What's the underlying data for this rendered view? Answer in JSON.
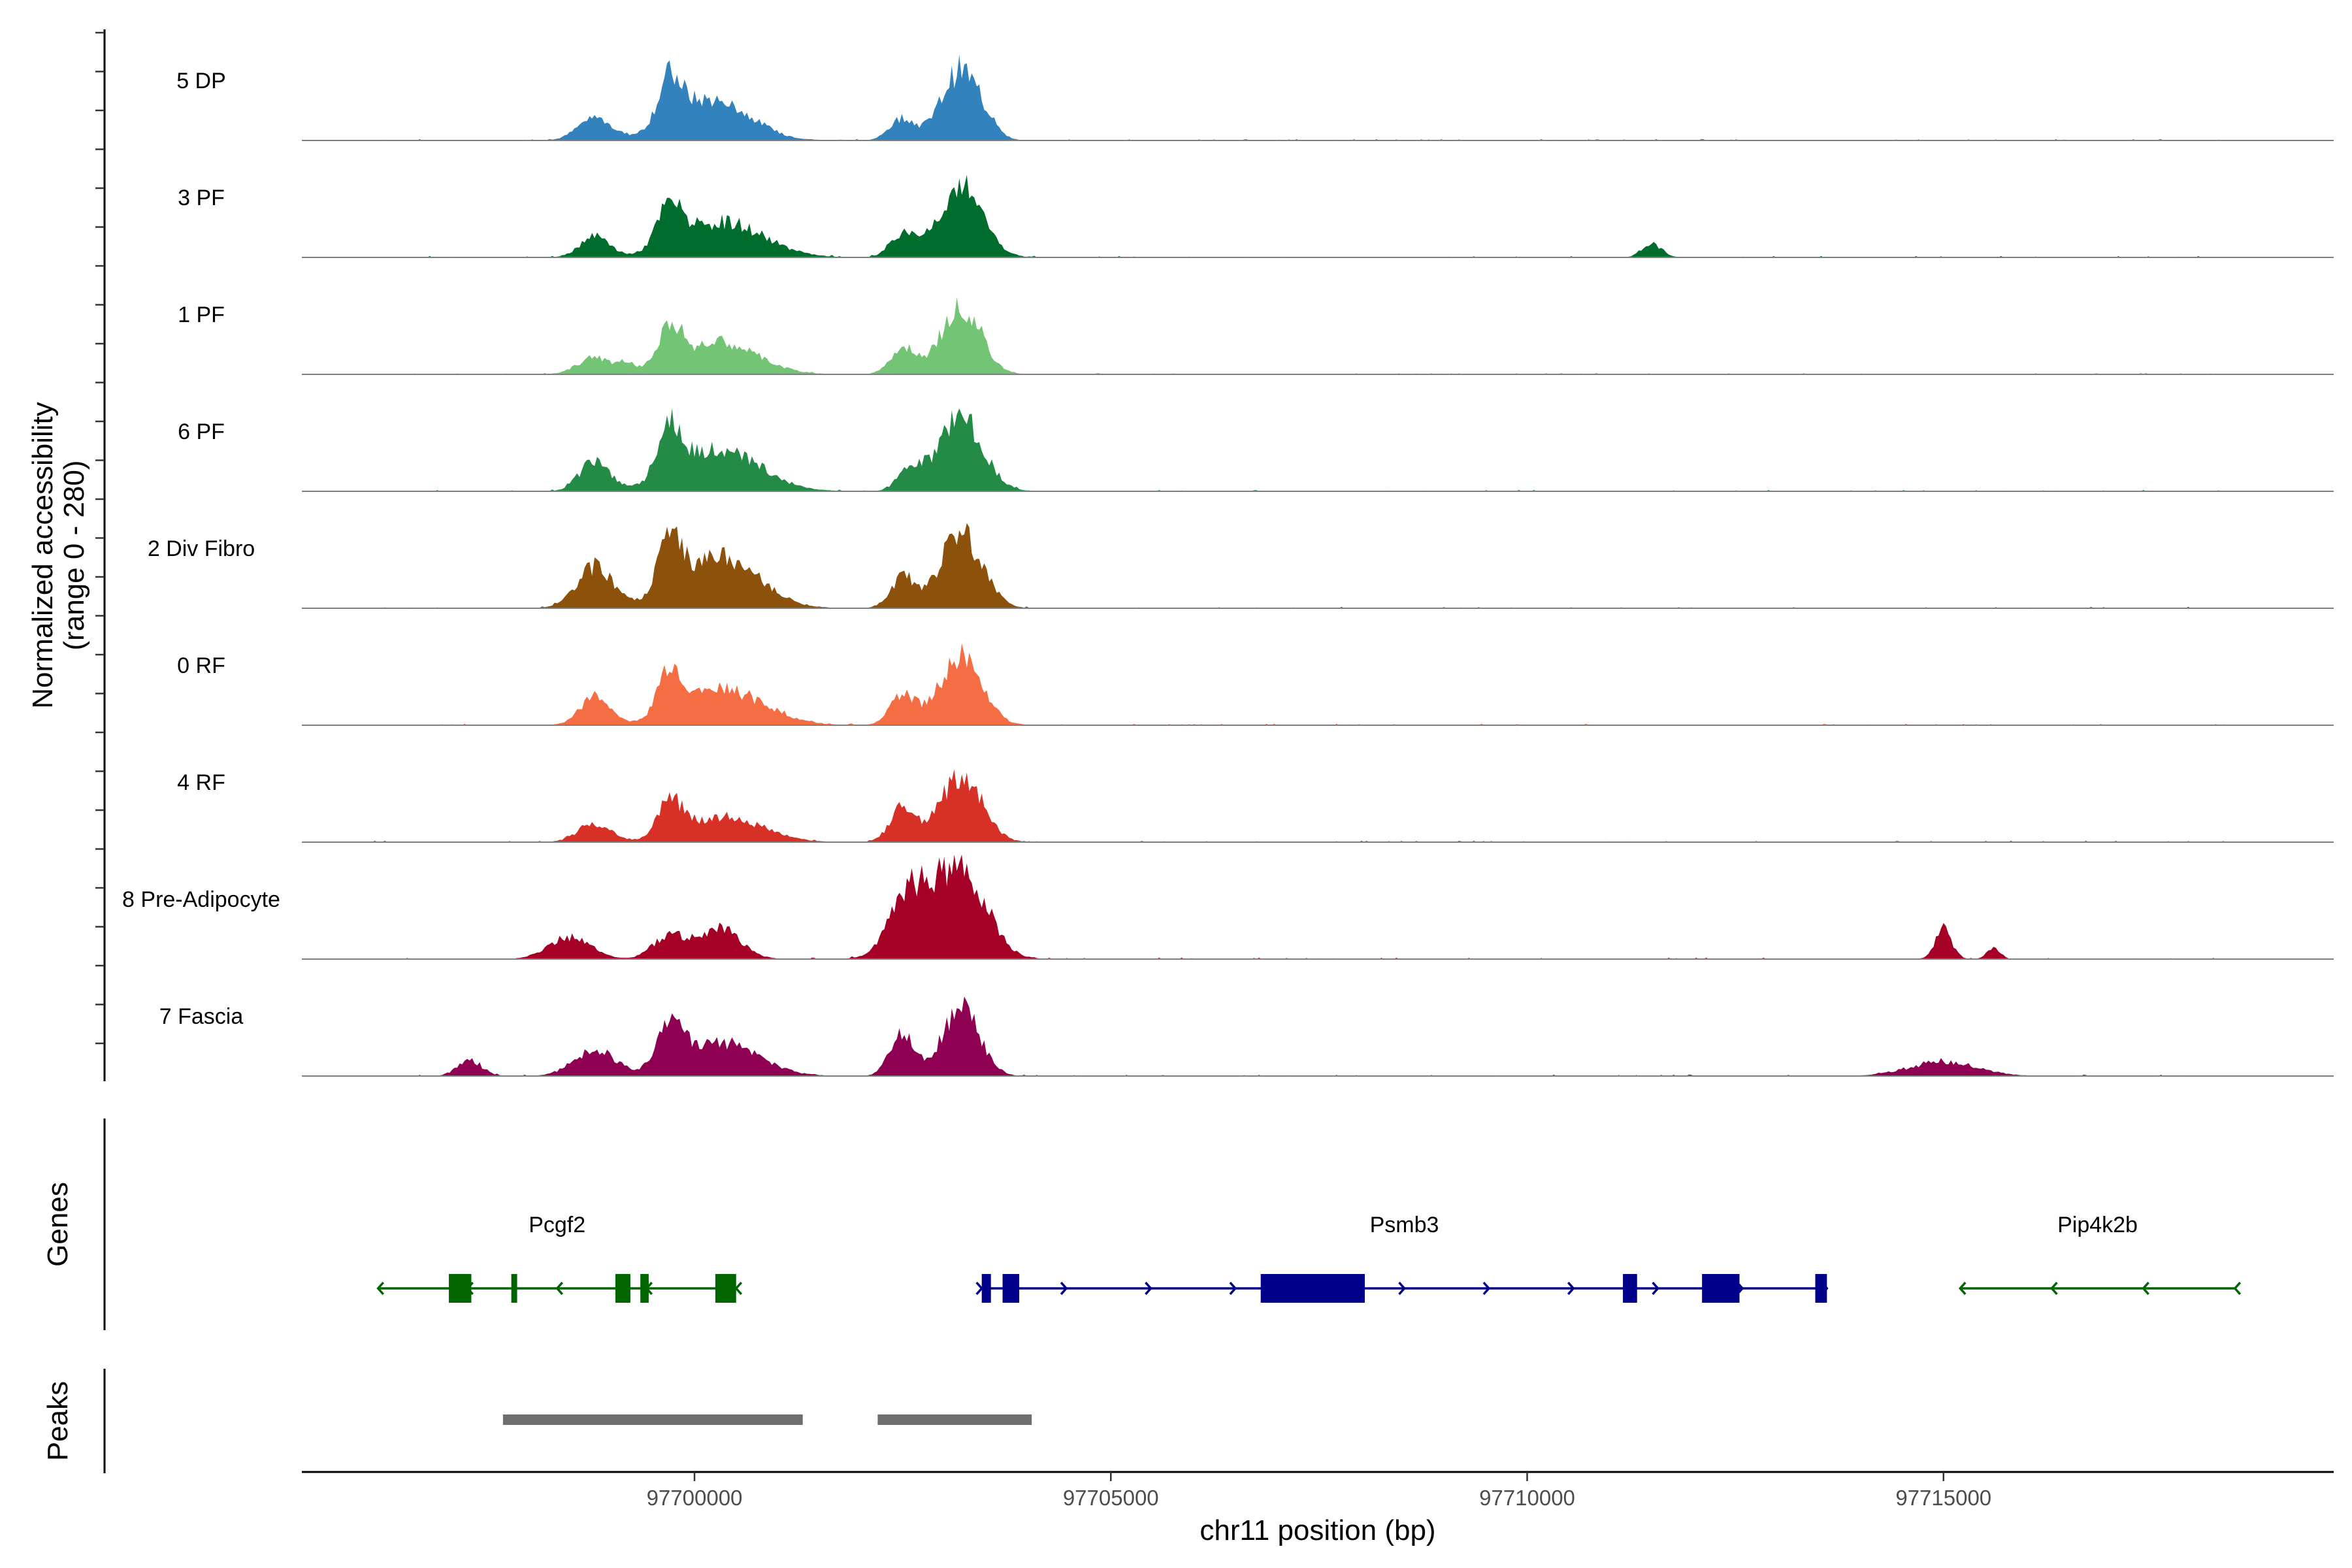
{
  "chart_data": {
    "type": "area",
    "chromosome": "chr11",
    "region": [
      97695000,
      97718500
    ],
    "y_axis_title": "Normalized accessibility",
    "y_axis_subtitle": "(range 0 - 280)",
    "y_range": [
      0,
      280
    ],
    "x_axis_title": "chr11 position (bp)",
    "x_ticks": [
      97700000,
      97705000,
      97710000,
      97715000
    ],
    "x_tick_labels": [
      "97700000",
      "97705000",
      "97710000",
      "97715000"
    ],
    "tracks": [
      {
        "name": "5 DP",
        "color": "#3182BD",
        "peaks": [
          [
            97698800,
            60,
            200
          ],
          [
            97699700,
            120,
            140
          ],
          [
            97700200,
            110,
            450
          ],
          [
            97702500,
            60,
            150
          ],
          [
            97703200,
            190,
            230
          ],
          [
            97703600,
            20,
            80
          ]
        ]
      },
      {
        "name": "3 PF",
        "color": "#006D2C",
        "peaks": [
          [
            97698800,
            55,
            180
          ],
          [
            97699700,
            110,
            150
          ],
          [
            97700350,
            95,
            480
          ],
          [
            97702500,
            60,
            150
          ],
          [
            97703200,
            190,
            260
          ],
          [
            97711500,
            35,
            120
          ]
        ]
      },
      {
        "name": "1 PF",
        "color": "#74C476",
        "peaks": [
          [
            97698800,
            45,
            200
          ],
          [
            97699200,
            25,
            100
          ],
          [
            97699700,
            110,
            140
          ],
          [
            97700300,
            85,
            450
          ],
          [
            97702500,
            70,
            150
          ],
          [
            97703200,
            185,
            240
          ]
        ]
      },
      {
        "name": "6 PF",
        "color": "#238B45",
        "peaks": [
          [
            97698800,
            80,
            180
          ],
          [
            97699700,
            140,
            140
          ],
          [
            97700300,
            115,
            480
          ],
          [
            97702600,
            60,
            150
          ],
          [
            97703200,
            200,
            260
          ]
        ]
      },
      {
        "name": "2 Div Fibro",
        "color": "#8C510A",
        "peaks": [
          [
            97698800,
            110,
            220
          ],
          [
            97699700,
            140,
            140
          ],
          [
            97700300,
            140,
            450
          ],
          [
            97702500,
            80,
            150
          ],
          [
            97703200,
            200,
            250
          ]
        ]
      },
      {
        "name": "0 RF",
        "color": "#F46D43",
        "peaks": [
          [
            97698800,
            75,
            180
          ],
          [
            97699700,
            115,
            140
          ],
          [
            97700350,
            95,
            480
          ],
          [
            97702500,
            80,
            150
          ],
          [
            97703200,
            190,
            250
          ]
        ]
      },
      {
        "name": "4 RF",
        "color": "#D73027",
        "peaks": [
          [
            97698800,
            50,
            200
          ],
          [
            97699700,
            100,
            140
          ],
          [
            97700350,
            70,
            450
          ],
          [
            97702500,
            90,
            150
          ],
          [
            97703200,
            180,
            250
          ]
        ]
      },
      {
        "name": "8 Pre-Adipocyte",
        "color": "#A50026",
        "peaks": [
          [
            97698500,
            60,
            250
          ],
          [
            97699700,
            60,
            200
          ],
          [
            97700300,
            80,
            250
          ],
          [
            97702600,
            170,
            250
          ],
          [
            97703200,
            240,
            300
          ],
          [
            97715000,
            80,
            100
          ],
          [
            97715600,
            30,
            80
          ]
        ]
      },
      {
        "name": "7 Fascia",
        "color": "#8E0152",
        "peaks": [
          [
            97697300,
            40,
            150
          ],
          [
            97698800,
            70,
            250
          ],
          [
            97699700,
            115,
            150
          ],
          [
            97700300,
            90,
            450
          ],
          [
            97702500,
            110,
            150
          ],
          [
            97703200,
            180,
            220
          ],
          [
            97715000,
            40,
            400
          ]
        ]
      }
    ],
    "genes": [
      {
        "name": "Pcgf2",
        "strand": "-",
        "start": 97696200,
        "end": 97700500,
        "color": "#006400",
        "exons": [
          [
            97697050,
            97697320
          ],
          [
            97697800,
            97697870
          ],
          [
            97699050,
            97699230
          ],
          [
            97699350,
            97699450
          ],
          [
            97700250,
            97700500
          ]
        ]
      },
      {
        "name": "Psmb3",
        "strand": "+",
        "start": 97703450,
        "end": 97713600,
        "color": "#00008B",
        "exons": [
          [
            97703450,
            97703560
          ],
          [
            97703700,
            97703900
          ],
          [
            97706800,
            97708050
          ],
          [
            97711150,
            97711320
          ],
          [
            97712100,
            97712550
          ],
          [
            97713460,
            97713600
          ]
        ]
      },
      {
        "name": "Pip4k2b",
        "strand": "-",
        "start": 97715200,
        "end": 97718500,
        "color": "#006400",
        "exons": []
      }
    ],
    "peak_regions": [
      [
        97697700,
        97701300
      ],
      [
        97702200,
        97704050
      ]
    ],
    "track_group_labels": {
      "genes": "Genes",
      "peaks": "Peaks"
    }
  }
}
